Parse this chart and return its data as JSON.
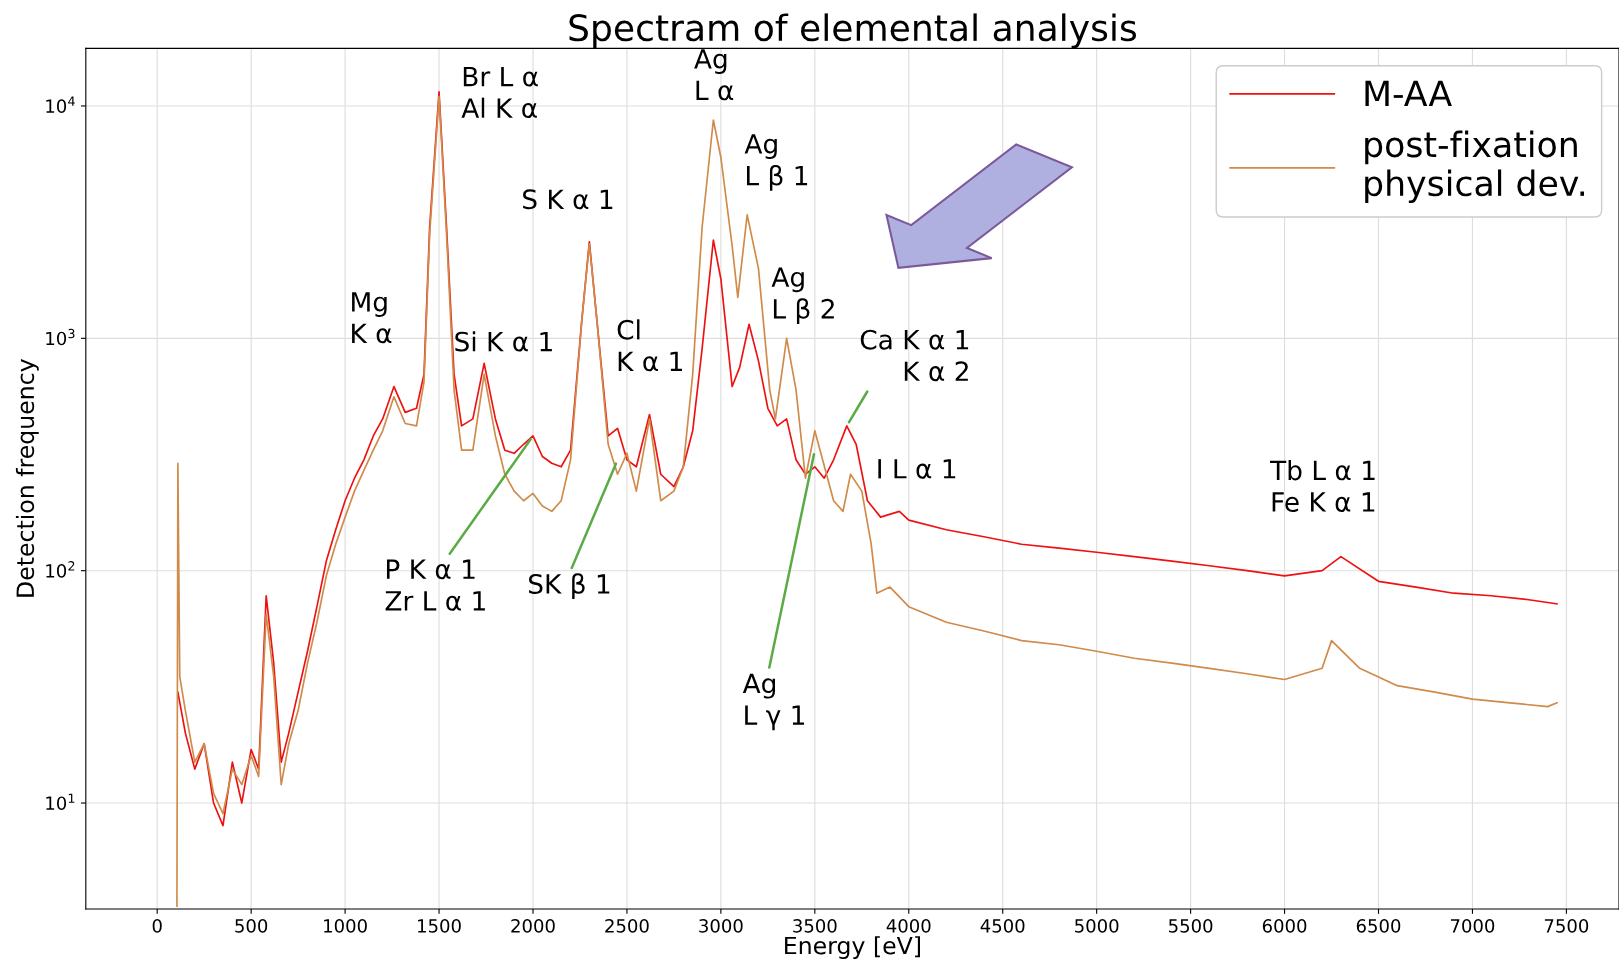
{
  "chart_data": {
    "type": "line",
    "title": "Spectram of elemental analysis",
    "xlabel": "Energy [eV]",
    "ylabel": "Detection frequency",
    "log": "y",
    "grid": true,
    "legend": "top right",
    "marker": "none",
    "line_style": "solid",
    "xlim": [
      -380,
      7780
    ],
    "ylim": [
      3.5,
      17700
    ],
    "xticks": [
      0,
      500,
      1000,
      1500,
      2000,
      2500,
      3000,
      3500,
      4000,
      4500,
      5000,
      5500,
      6000,
      6500,
      7000,
      7500
    ],
    "yticks": [
      {
        "value": 10,
        "label": "10$^{1}$"
      },
      {
        "value": 100,
        "label": "10$^{2}$"
      },
      {
        "value": 1000,
        "label": "10$^{3}$"
      },
      {
        "value": 10000,
        "label": "10$^{4}$"
      }
    ],
    "series": [
      {
        "name": "M-AA",
        "color": "#ee1111",
        "x": [
          110,
          150,
          200,
          250,
          300,
          350,
          400,
          450,
          500,
          540,
          580,
          620,
          660,
          700,
          750,
          800,
          850,
          900,
          950,
          1000,
          1050,
          1100,
          1150,
          1200,
          1260,
          1320,
          1380,
          1420,
          1450,
          1500,
          1540,
          1580,
          1620,
          1680,
          1740,
          1800,
          1850,
          1900,
          1950,
          2000,
          2050,
          2100,
          2150,
          2200,
          2260,
          2300,
          2340,
          2400,
          2450,
          2500,
          2550,
          2620,
          2680,
          2750,
          2800,
          2850,
          2900,
          2960,
          3000,
          3060,
          3100,
          3150,
          3200,
          3250,
          3300,
          3350,
          3400,
          3450,
          3500,
          3550,
          3600,
          3670,
          3720,
          3780,
          3850,
          3950,
          4000,
          4200,
          4400,
          4600,
          4800,
          5000,
          5200,
          5400,
          5600,
          5800,
          6000,
          6200,
          6300,
          6500,
          6700,
          6900,
          7100,
          7300,
          7450
        ],
        "values": [
          30,
          20,
          14,
          18,
          10,
          8,
          15,
          10,
          17,
          14,
          78,
          40,
          15,
          20,
          30,
          45,
          70,
          110,
          150,
          200,
          250,
          300,
          380,
          450,
          620,
          480,
          500,
          700,
          3000,
          11500,
          3000,
          700,
          420,
          450,
          780,
          450,
          330,
          320,
          350,
          380,
          310,
          290,
          280,
          330,
          1200,
          2600,
          1200,
          380,
          410,
          300,
          280,
          470,
          260,
          230,
          280,
          400,
          900,
          2650,
          1800,
          620,
          750,
          1150,
          800,
          500,
          420,
          450,
          300,
          260,
          280,
          250,
          300,
          420,
          350,
          200,
          170,
          180,
          165,
          150,
          140,
          130,
          125,
          120,
          115,
          110,
          105,
          100,
          95,
          100,
          115,
          90,
          85,
          80,
          78,
          75,
          72
        ]
      },
      {
        "name": "post-fixation\nphysical dev.",
        "color": "#d08a4a",
        "x": [
          105,
          110,
          120,
          150,
          200,
          250,
          300,
          350,
          400,
          450,
          500,
          540,
          580,
          620,
          660,
          700,
          750,
          800,
          850,
          900,
          950,
          1000,
          1050,
          1100,
          1150,
          1200,
          1260,
          1320,
          1380,
          1420,
          1450,
          1500,
          1540,
          1580,
          1620,
          1680,
          1740,
          1800,
          1850,
          1900,
          1950,
          2000,
          2050,
          2100,
          2150,
          2200,
          2260,
          2300,
          2340,
          2400,
          2450,
          2500,
          2550,
          2620,
          2680,
          2750,
          2800,
          2850,
          2900,
          2960,
          3000,
          3060,
          3090,
          3140,
          3200,
          3260,
          3290,
          3350,
          3400,
          3450,
          3500,
          3600,
          3650,
          3690,
          3750,
          3800,
          3830,
          3900,
          4000,
          4200,
          4400,
          4600,
          4800,
          5000,
          5200,
          5400,
          5600,
          5800,
          6000,
          6200,
          6250,
          6400,
          6600,
          6800,
          7000,
          7200,
          7400,
          7450
        ],
        "values": [
          3.6,
          290,
          35,
          25,
          15,
          18,
          11,
          9,
          14,
          12,
          16,
          13,
          65,
          35,
          12,
          18,
          25,
          40,
          60,
          95,
          130,
          170,
          220,
          270,
          330,
          400,
          560,
          430,
          420,
          650,
          2800,
          11000,
          2800,
          600,
          330,
          330,
          700,
          380,
          260,
          220,
          200,
          215,
          190,
          180,
          200,
          300,
          1200,
          2550,
          1200,
          350,
          260,
          320,
          220,
          450,
          200,
          220,
          280,
          700,
          3000,
          8700,
          6000,
          2500,
          1500,
          3400,
          2000,
          600,
          450,
          1000,
          600,
          250,
          400,
          200,
          180,
          260,
          220,
          130,
          80,
          85,
          70,
          60,
          55,
          50,
          48,
          45,
          42,
          40,
          38,
          36,
          34,
          38,
          50,
          38,
          32,
          30,
          28,
          27,
          26,
          27
        ]
      }
    ],
    "annotations": [
      {
        "text": "Br L α\nAl K α",
        "x": 1500,
        "y": 11500
      },
      {
        "text": "Ag\nL α",
        "x": 2960,
        "y": 8700
      },
      {
        "text": "Ag\nL β 1",
        "x": 3140,
        "y": 3400
      },
      {
        "text": "S K α 1",
        "x": 2300,
        "y": 2600
      },
      {
        "text": "Mg\nK α",
        "x": 1260,
        "y": 620
      },
      {
        "text": "Si K α 1",
        "x": 1740,
        "y": 780
      },
      {
        "text": "Cl\nK α 1",
        "x": 2620,
        "y": 470
      },
      {
        "text": "Ag\nL β 2",
        "x": 3350,
        "y": 1000
      },
      {
        "text": "Ca K α 1\nK α 2",
        "x": 3670,
        "y": 420
      },
      {
        "text": "I L α 1",
        "x": 3950,
        "y": 180
      },
      {
        "text": "Tb L α 1\nFe K α 1",
        "x": 6300,
        "y": 115
      },
      {
        "text": "P K α 1\nZr L α 1",
        "x": 2000,
        "y": 380
      },
      {
        "text": "SK β 1",
        "x": 2450,
        "y": 300
      },
      {
        "text": "Ag\nL γ 1",
        "x": 3500,
        "y": 330
      }
    ]
  }
}
